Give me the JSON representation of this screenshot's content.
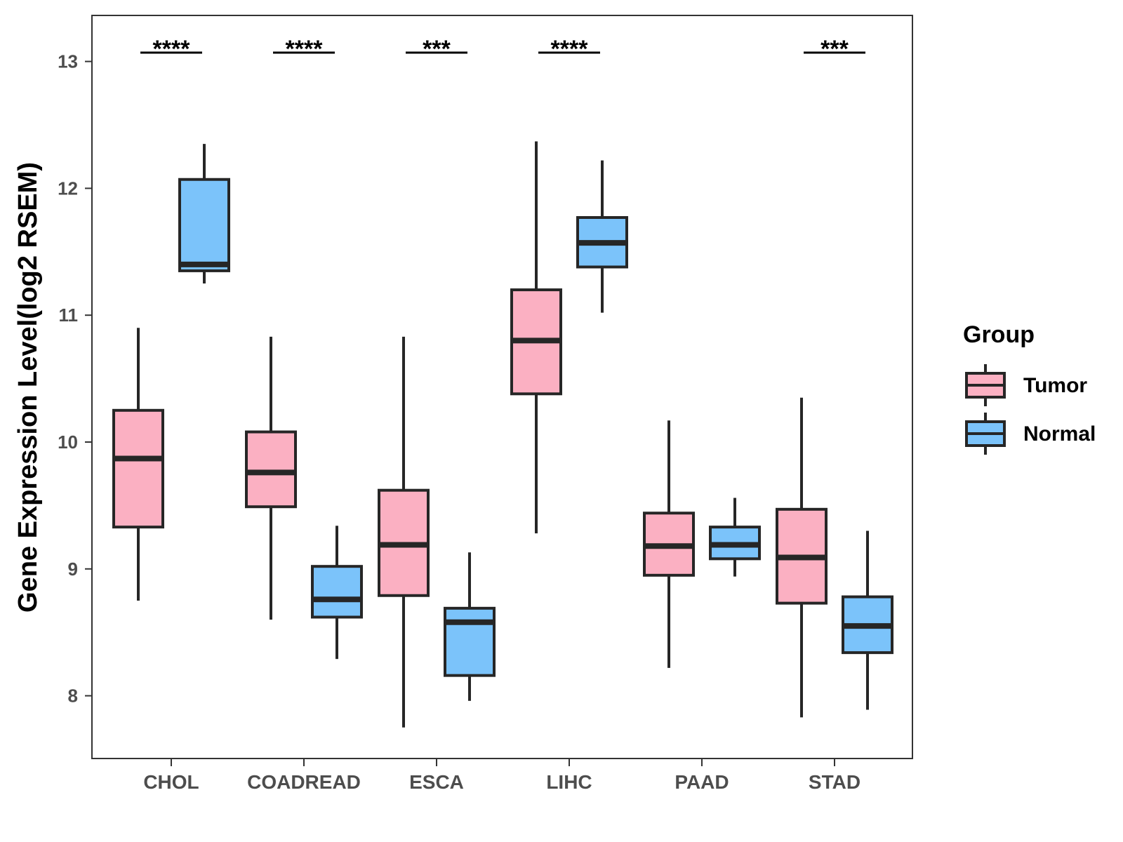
{
  "chart_data": {
    "type": "boxplot",
    "ylabel": "Gene Expression Level(log2 RSEM)",
    "xlabel": "",
    "ylim": [
      7.5,
      13.35
    ],
    "yticks": [
      8,
      9,
      10,
      11,
      12,
      13
    ],
    "categories": [
      "CHOL",
      "COADREAD",
      "ESCA",
      "LIHC",
      "PAAD",
      "STAD"
    ],
    "legend": {
      "title": "Group",
      "position": "right",
      "entries": [
        {
          "name": "Tumor",
          "color": "#fbb0c2"
        },
        {
          "name": "Normal",
          "color": "#7bc3fa"
        }
      ]
    },
    "series": [
      {
        "name": "Tumor",
        "color": "#fbb0c2",
        "boxes": [
          {
            "whisker_low": 8.75,
            "q1": 9.33,
            "median": 9.87,
            "q3": 10.25,
            "whisker_high": 10.9
          },
          {
            "whisker_low": 8.6,
            "q1": 9.49,
            "median": 9.76,
            "q3": 10.08,
            "whisker_high": 10.83
          },
          {
            "whisker_low": 7.75,
            "q1": 8.79,
            "median": 9.19,
            "q3": 9.62,
            "whisker_high": 10.83
          },
          {
            "whisker_low": 9.28,
            "q1": 10.38,
            "median": 10.8,
            "q3": 11.2,
            "whisker_high": 12.37
          },
          {
            "whisker_low": 8.22,
            "q1": 8.95,
            "median": 9.18,
            "q3": 9.44,
            "whisker_high": 10.17
          },
          {
            "whisker_low": 7.83,
            "q1": 8.73,
            "median": 9.09,
            "q3": 9.47,
            "whisker_high": 10.35
          }
        ]
      },
      {
        "name": "Normal",
        "color": "#7bc3fa",
        "boxes": [
          {
            "whisker_low": 11.25,
            "q1": 11.35,
            "median": 11.4,
            "q3": 12.07,
            "whisker_high": 12.35
          },
          {
            "whisker_low": 8.29,
            "q1": 8.62,
            "median": 8.76,
            "q3": 9.02,
            "whisker_high": 9.34
          },
          {
            "whisker_low": 7.96,
            "q1": 8.16,
            "median": 8.58,
            "q3": 8.69,
            "whisker_high": 9.13
          },
          {
            "whisker_low": 11.02,
            "q1": 11.38,
            "median": 11.57,
            "q3": 11.77,
            "whisker_high": 12.22
          },
          {
            "whisker_low": 8.94,
            "q1": 9.08,
            "median": 9.19,
            "q3": 9.33,
            "whisker_high": 9.56
          },
          {
            "whisker_low": 7.89,
            "q1": 8.34,
            "median": 8.55,
            "q3": 8.78,
            "whisker_high": 9.3
          }
        ]
      }
    ],
    "significance": [
      "****",
      "****",
      "***",
      "****",
      "",
      "***"
    ],
    "significance_y": 13.07
  }
}
